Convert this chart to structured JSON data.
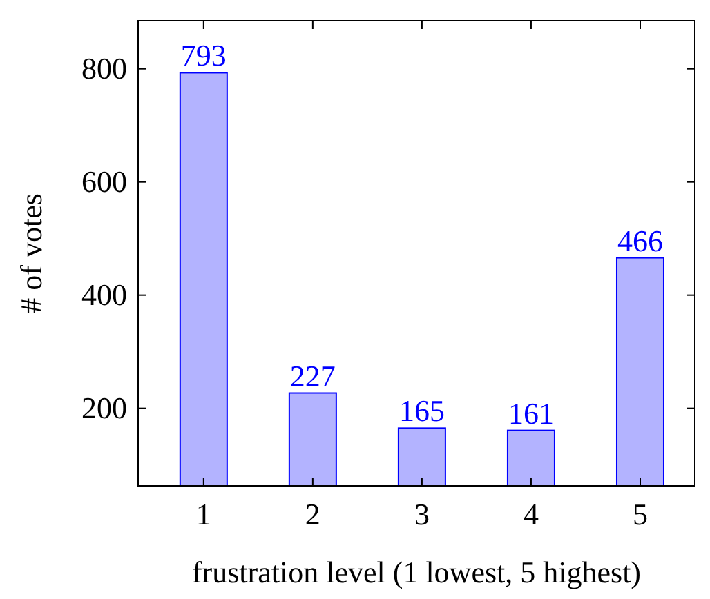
{
  "chart_data": {
    "type": "bar",
    "xlabel": "frustration level (1 lowest, 5 highest)",
    "ylabel": "# of votes",
    "x": [
      1,
      2,
      3,
      4,
      5
    ],
    "series": [
      {
        "color": "#0000ff",
        "values": [
          793,
          227,
          165,
          161,
          466
        ]
      }
    ],
    "xlim": [
      0.4,
      5.5
    ],
    "xticks": [
      1,
      2,
      3,
      4,
      5
    ],
    "ylim": [
      63,
      885
    ],
    "yticks": [
      200,
      400,
      600,
      800
    ],
    "data_labels": true
  }
}
